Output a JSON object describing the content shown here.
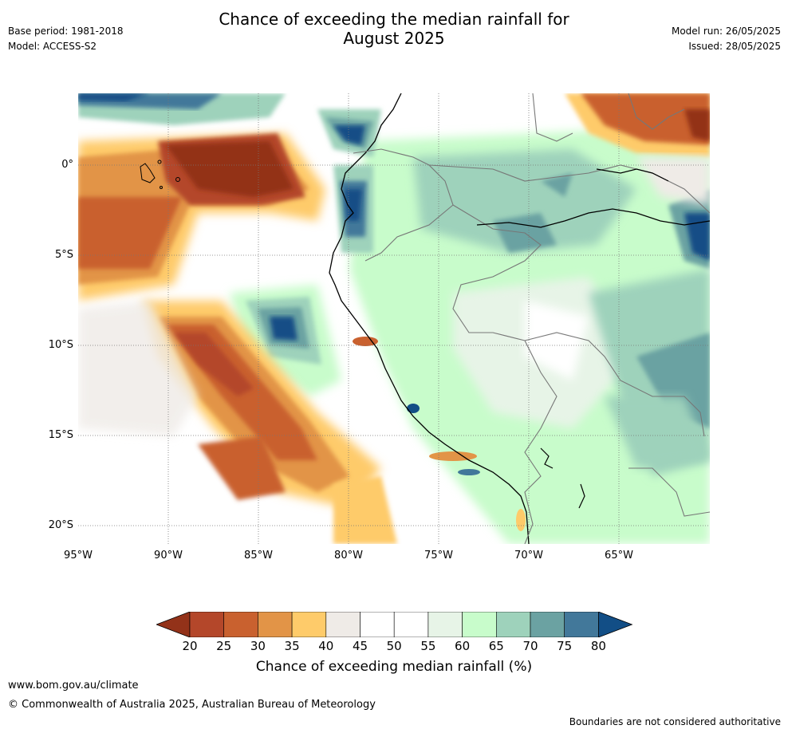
{
  "header": {
    "title_line1": "Chance of exceeding the median rainfall for",
    "title_line2": "August 2025",
    "base_period": "Base period: 1981-2018",
    "model": "Model: ACCESS-S2",
    "model_run": "Model run: 26/05/2025",
    "issued": "Issued: 28/05/2025"
  },
  "map": {
    "lat_labels": [
      "0°",
      "5°S",
      "10°S",
      "15°S",
      "20°S"
    ],
    "lon_labels": [
      "95°W",
      "90°W",
      "85°W",
      "80°W",
      "75°W",
      "70°W",
      "65°W"
    ],
    "lat_range": [
      -21,
      4
    ],
    "lon_range": [
      -95,
      -60
    ]
  },
  "colorbar": {
    "ticks": [
      "20",
      "25",
      "30",
      "35",
      "40",
      "45",
      "50",
      "55",
      "60",
      "65",
      "70",
      "75",
      "80"
    ],
    "colors": [
      "#933219",
      "#b4472a",
      "#c9612f",
      "#e29447",
      "#fecb6a",
      "#efebe7",
      "#ffffff",
      "#ffffff",
      "#e7f4e7",
      "#c8fccb",
      "#9ed2bb",
      "#6ba2a2",
      "#42789a",
      "#124e86"
    ],
    "label": "Chance of exceeding median rainfall (%)"
  },
  "footer": {
    "website": "www.bom.gov.au/climate",
    "copyright": "© Commonwealth of Australia 2025, Australian Bureau of Meteorology",
    "disclaimer": "Boundaries are not considered authoritative"
  }
}
